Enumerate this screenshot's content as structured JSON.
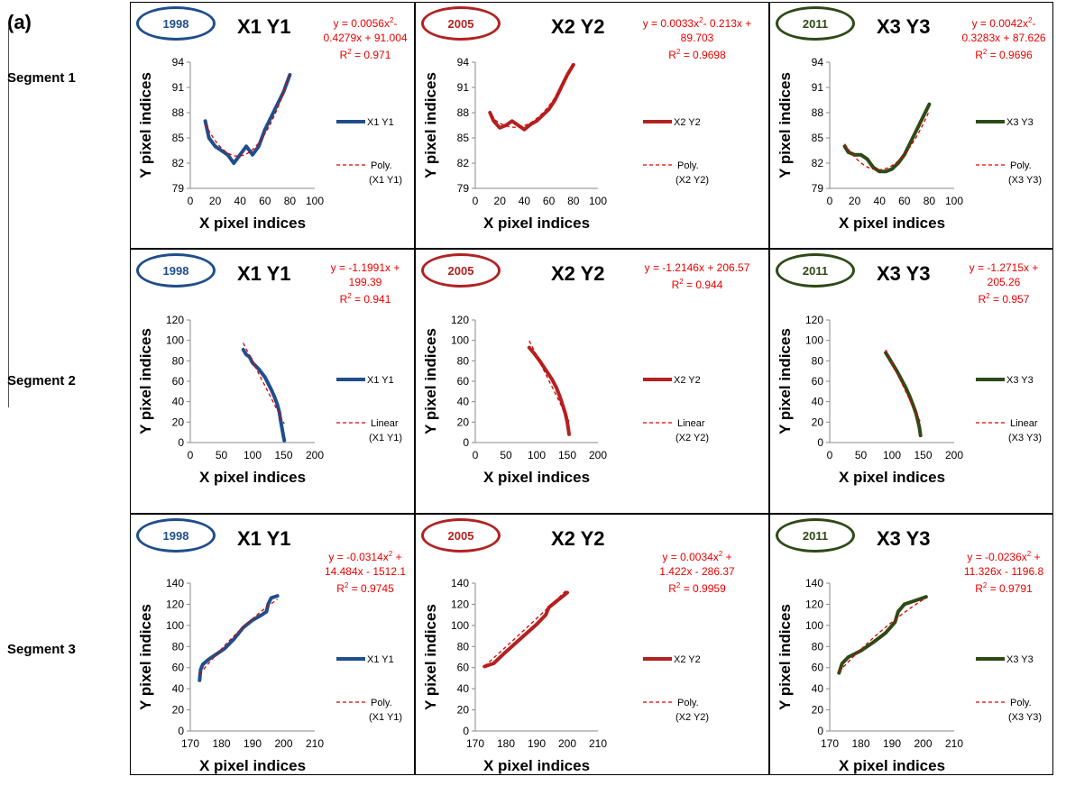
{
  "figure": {
    "panel_label": "(a)",
    "segments": [
      "Segment 1",
      "Segment 2",
      "Segment 3"
    ],
    "axis_x_label": "X pixel indices",
    "axis_y_label": "Y pixel indices"
  },
  "colors": {
    "1998": "#1f4e8c",
    "2005": "#b22222",
    "2011": "#2e4a16",
    "fit": "#e00000"
  },
  "chart_data": [
    {
      "type": "line",
      "segment": "Segment 1",
      "year": "1998",
      "title": "X1 Y1",
      "color": "#1f4e8c",
      "series_name": "X1 Y1",
      "trend_name": "Poly. (X1 Y1)",
      "trend": "poly",
      "coef": [
        0.0056,
        -0.4279,
        91.004
      ],
      "eq_lines": [
        "y = 0.0056x²-",
        "0.4279x + 91.004",
        "R² = 0.971"
      ],
      "xlim": [
        0,
        100
      ],
      "xticks": [
        0,
        20,
        40,
        60,
        80,
        100
      ],
      "ylim": [
        79,
        94
      ],
      "yticks": [
        79,
        82,
        85,
        88,
        91,
        94
      ],
      "points": [
        [
          12,
          87
        ],
        [
          15,
          85
        ],
        [
          20,
          84
        ],
        [
          25,
          83.5
        ],
        [
          30,
          83
        ],
        [
          35,
          82
        ],
        [
          40,
          83
        ],
        [
          45,
          84
        ],
        [
          50,
          83
        ],
        [
          55,
          84
        ],
        [
          60,
          86
        ],
        [
          65,
          87.5
        ],
        [
          70,
          89
        ],
        [
          75,
          90.5
        ],
        [
          80,
          92.5
        ]
      ]
    },
    {
      "type": "line",
      "segment": "Segment 1",
      "year": "2005",
      "title": "X2 Y2",
      "color": "#b22222",
      "series_name": "X2 Y2",
      "trend_name": "Poly. (X2 Y2)",
      "trend": "poly",
      "coef": [
        0.0033,
        -0.213,
        89.703
      ],
      "eq_lines": [
        "y = 0.0033x²- 0.213x +",
        "89.703",
        "R² = 0.9698"
      ],
      "xlim": [
        0,
        100
      ],
      "xticks": [
        0,
        20,
        40,
        60,
        80,
        100
      ],
      "ylim": [
        79,
        94
      ],
      "yticks": [
        79,
        82,
        85,
        88,
        91,
        94
      ],
      "points": [
        [
          12,
          88
        ],
        [
          15,
          87
        ],
        [
          20,
          86.2
        ],
        [
          25,
          86.5
        ],
        [
          30,
          87
        ],
        [
          35,
          86.5
        ],
        [
          40,
          86
        ],
        [
          45,
          86.6
        ],
        [
          50,
          87
        ],
        [
          55,
          87.7
        ],
        [
          60,
          88.4
        ],
        [
          65,
          89.5
        ],
        [
          70,
          91
        ],
        [
          75,
          92.5
        ],
        [
          80,
          93.7
        ]
      ]
    },
    {
      "type": "line",
      "segment": "Segment 1",
      "year": "2011",
      "title": "X3 Y3",
      "color": "#2e4a16",
      "series_name": "X3 Y3",
      "trend_name": "Poly. (X3 Y3)",
      "trend": "poly",
      "coef": [
        0.0042,
        -0.3283,
        87.626
      ],
      "eq_lines": [
        "y = 0.0042x²-",
        "0.3283x + 87.626",
        "R² = 0.9696"
      ],
      "xlim": [
        0,
        100
      ],
      "xticks": [
        0,
        20,
        40,
        60,
        80,
        100
      ],
      "ylim": [
        79,
        94
      ],
      "yticks": [
        79,
        82,
        85,
        88,
        91,
        94
      ],
      "points": [
        [
          12,
          84
        ],
        [
          15,
          83.3
        ],
        [
          20,
          83
        ],
        [
          25,
          83
        ],
        [
          30,
          82.5
        ],
        [
          35,
          81.5
        ],
        [
          40,
          81
        ],
        [
          45,
          81
        ],
        [
          50,
          81.3
        ],
        [
          55,
          82
        ],
        [
          60,
          83
        ],
        [
          65,
          84.5
        ],
        [
          70,
          86
        ],
        [
          75,
          87.5
        ],
        [
          80,
          89
        ]
      ]
    },
    {
      "type": "line",
      "segment": "Segment 2",
      "year": "1998",
      "title": "X1 Y1",
      "color": "#1f4e8c",
      "series_name": "X1 Y1",
      "trend_name": "Linear (X1 Y1)",
      "trend": "linear",
      "coef": [
        -1.1991,
        199.39
      ],
      "eq_lines": [
        "y = -1.1991x +",
        "199.39",
        "R² = 0.941"
      ],
      "xlim": [
        0,
        200
      ],
      "xticks": [
        0,
        50,
        100,
        150,
        200
      ],
      "ylim": [
        0,
        120
      ],
      "yticks": [
        0,
        20,
        40,
        60,
        80,
        100,
        120
      ],
      "points": [
        [
          85,
          91
        ],
        [
          90,
          86
        ],
        [
          95,
          84
        ],
        [
          100,
          78
        ],
        [
          110,
          72
        ],
        [
          120,
          64
        ],
        [
          125,
          58
        ],
        [
          130,
          52
        ],
        [
          135,
          45
        ],
        [
          140,
          37
        ],
        [
          143,
          30
        ],
        [
          145,
          22
        ],
        [
          148,
          12
        ],
        [
          150,
          5
        ],
        [
          151,
          2
        ]
      ]
    },
    {
      "type": "line",
      "segment": "Segment 2",
      "year": "2005",
      "title": "X2 Y2",
      "color": "#b22222",
      "series_name": "X2 Y2",
      "trend_name": "Linear (X2 Y2)",
      "trend": "linear",
      "coef": [
        -1.2146,
        206.57
      ],
      "eq_lines": [
        "y = -1.2146x + 206.57",
        "R² = 0.944"
      ],
      "xlim": [
        0,
        200
      ],
      "xticks": [
        0,
        50,
        100,
        150,
        200
      ],
      "ylim": [
        0,
        120
      ],
      "yticks": [
        0,
        20,
        40,
        60,
        80,
        100,
        120
      ],
      "points": [
        [
          88,
          93
        ],
        [
          95,
          88
        ],
        [
          105,
          80
        ],
        [
          115,
          71
        ],
        [
          125,
          62
        ],
        [
          132,
          54
        ],
        [
          138,
          45
        ],
        [
          143,
          36
        ],
        [
          147,
          28
        ],
        [
          150,
          20
        ],
        [
          152,
          12
        ],
        [
          153,
          8
        ]
      ]
    },
    {
      "type": "line",
      "segment": "Segment 2",
      "year": "2011",
      "title": "X3 Y3",
      "color": "#2e4a16",
      "series_name": "X3 Y3",
      "trend_name": "Linear (X3 Y3)",
      "trend": "linear",
      "coef": [
        -1.2715,
        205.26
      ],
      "eq_lines": [
        "y = -1.2715x +",
        "205.26",
        "R² = 0.957"
      ],
      "xlim": [
        0,
        200
      ],
      "xticks": [
        0,
        50,
        100,
        150,
        200
      ],
      "ylim": [
        0,
        120
      ],
      "yticks": [
        0,
        20,
        40,
        60,
        80,
        100,
        120
      ],
      "points": [
        [
          90,
          88
        ],
        [
          95,
          83
        ],
        [
          100,
          78
        ],
        [
          108,
          70
        ],
        [
          115,
          62
        ],
        [
          122,
          54
        ],
        [
          128,
          46
        ],
        [
          133,
          38
        ],
        [
          138,
          30
        ],
        [
          141,
          23
        ],
        [
          144,
          15
        ],
        [
          146,
          7
        ]
      ]
    },
    {
      "type": "line",
      "segment": "Segment 3",
      "year": "1998",
      "title": "X1 Y1",
      "color": "#1f4e8c",
      "series_name": "X1 Y1",
      "trend_name": "Poly. (X1 Y1)",
      "trend": "poly",
      "coef": [
        -0.0314,
        14.484,
        -1512.1
      ],
      "eq_lines": [
        "y = -0.0314x² +",
        "14.484x - 1512.1",
        "R² = 0.9745"
      ],
      "xlim": [
        170,
        210
      ],
      "xticks": [
        170,
        180,
        190,
        200,
        210
      ],
      "ylim": [
        0,
        140
      ],
      "yticks": [
        0,
        20,
        40,
        60,
        80,
        100,
        120,
        140
      ],
      "points": [
        [
          173,
          48
        ],
        [
          173.3,
          58
        ],
        [
          174,
          63
        ],
        [
          176,
          68
        ],
        [
          178,
          72
        ],
        [
          181,
          78
        ],
        [
          184,
          87
        ],
        [
          187,
          98
        ],
        [
          190,
          105
        ],
        [
          193,
          110
        ],
        [
          194.5,
          113
        ],
        [
          195,
          120
        ],
        [
          196,
          126
        ],
        [
          198,
          128
        ]
      ]
    },
    {
      "type": "line",
      "segment": "Segment 3",
      "year": "2005",
      "title": "X2 Y2",
      "color": "#b22222",
      "series_name": "X2 Y2",
      "trend_name": "Poly. (X2 Y2)",
      "trend": "poly",
      "coef": [
        0.0034,
        1.422,
        -286.37
      ],
      "eq_lines": [
        "y = 0.0034x² +",
        "1.422x - 286.37",
        "R² = 0.9959"
      ],
      "xlim": [
        170,
        210
      ],
      "xticks": [
        170,
        180,
        190,
        200,
        210
      ],
      "ylim": [
        0,
        140
      ],
      "yticks": [
        0,
        20,
        40,
        60,
        80,
        100,
        120,
        140
      ],
      "points": [
        [
          173,
          61
        ],
        [
          176,
          64
        ],
        [
          180,
          75
        ],
        [
          185,
          88
        ],
        [
          190,
          101
        ],
        [
          193,
          110
        ],
        [
          194,
          117
        ],
        [
          197,
          124
        ],
        [
          200,
          131
        ]
      ]
    },
    {
      "type": "line",
      "segment": "Segment 3",
      "year": "2011",
      "title": "X3 Y3",
      "color": "#2e4a16",
      "series_name": "X3 Y3",
      "trend_name": "Poly. (X3 Y3)",
      "trend": "poly",
      "coef": [
        -0.0236,
        11.326,
        -1196.8
      ],
      "eq_lines": [
        "y = -0.0236x² +",
        "11.326x - 1196.8",
        "R² = 0.9791"
      ],
      "xlim": [
        170,
        210
      ],
      "xticks": [
        170,
        180,
        190,
        200,
        210
      ],
      "ylim": [
        0,
        140
      ],
      "yticks": [
        0,
        20,
        40,
        60,
        80,
        100,
        120,
        140
      ],
      "points": [
        [
          173,
          55
        ],
        [
          174,
          64
        ],
        [
          176,
          70
        ],
        [
          180,
          76
        ],
        [
          184,
          84
        ],
        [
          188,
          93
        ],
        [
          191,
          103
        ],
        [
          192,
          113
        ],
        [
          194,
          120
        ],
        [
          197,
          123
        ],
        [
          201,
          127
        ]
      ]
    }
  ]
}
